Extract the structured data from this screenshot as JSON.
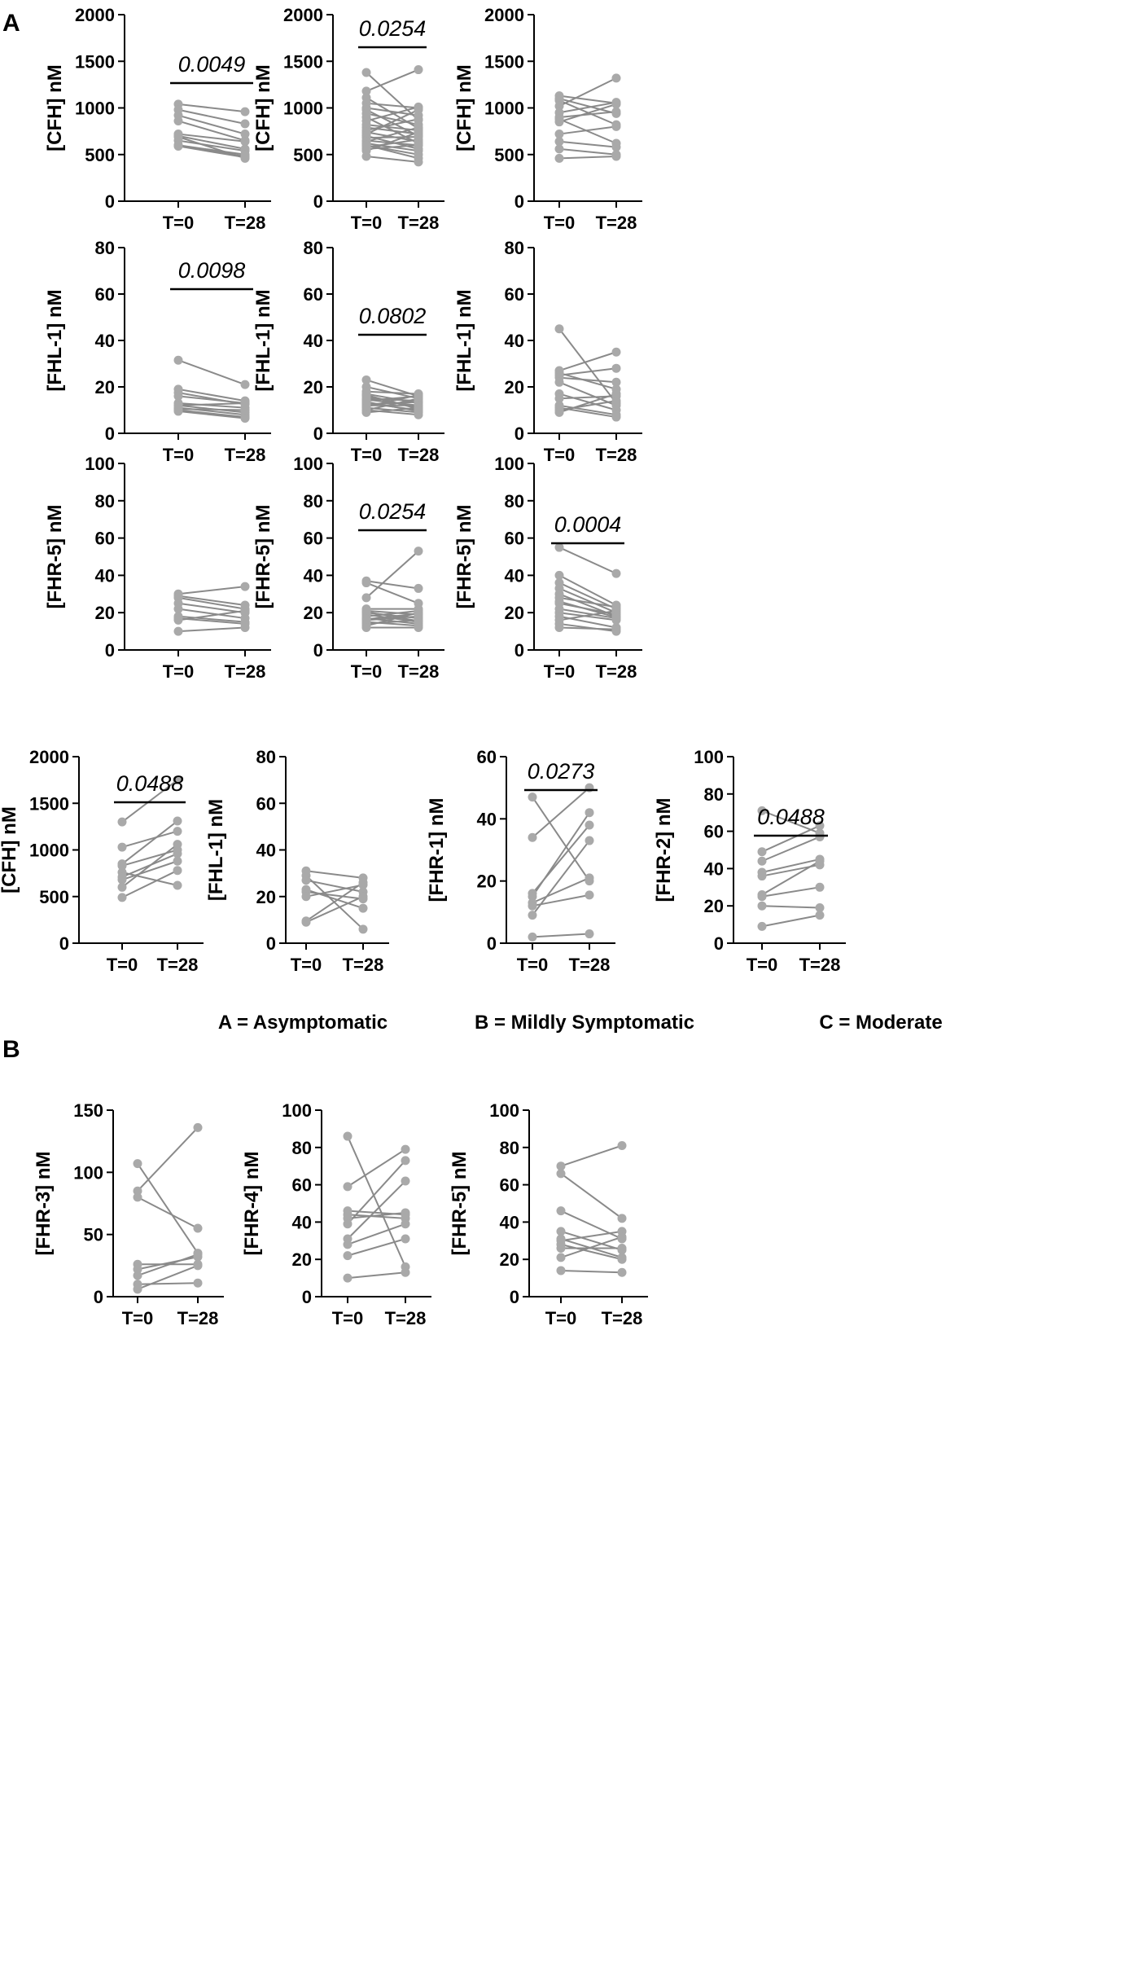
{
  "panels": {
    "A": "A",
    "B": "B"
  },
  "group_labels": [
    "A = Asymptomatic",
    "B = Mildly Symptomatic",
    "C = Moderate"
  ],
  "colors": {
    "line": "#8a8a8a",
    "point": "#a9a9a9",
    "axis": "#000000"
  },
  "chart_data": [
    {
      "type": "line",
      "panel": "A",
      "categories": [
        "T=0",
        "T=28"
      ],
      "ylabel": "[CFH] nM",
      "ylim": [
        0,
        2000
      ],
      "yticks": [
        0,
        500,
        1000,
        1500,
        2000
      ],
      "pvalue": "0.0049",
      "pairs": [
        [
          1040,
          960
        ],
        [
          980,
          830
        ],
        [
          920,
          720
        ],
        [
          860,
          650
        ],
        [
          720,
          640
        ],
        [
          700,
          560
        ],
        [
          650,
          540
        ],
        [
          600,
          500
        ],
        [
          590,
          470
        ],
        [
          600,
          480
        ],
        [
          690,
          460
        ]
      ]
    },
    {
      "type": "line",
      "panel": "A",
      "categories": [
        "T=0",
        "T=28"
      ],
      "ylabel": "[CFH] nM",
      "ylim": [
        0,
        2000
      ],
      "yticks": [
        0,
        500,
        1000,
        1500,
        2000
      ],
      "pvalue": "0.0254",
      "pairs": [
        [
          1380,
          870
        ],
        [
          1180,
          1410
        ],
        [
          1110,
          780
        ],
        [
          1050,
          1000
        ],
        [
          1000,
          920
        ],
        [
          980,
          700
        ],
        [
          940,
          820
        ],
        [
          900,
          620
        ],
        [
          860,
          1010
        ],
        [
          820,
          760
        ],
        [
          790,
          720
        ],
        [
          760,
          880
        ],
        [
          740,
          640
        ],
        [
          720,
          980
        ],
        [
          700,
          560
        ],
        [
          680,
          690
        ],
        [
          650,
          600
        ],
        [
          640,
          790
        ],
        [
          620,
          540
        ],
        [
          600,
          500
        ],
        [
          580,
          660
        ],
        [
          560,
          600
        ],
        [
          540,
          740
        ],
        [
          480,
          420
        ],
        [
          600,
          460
        ]
      ]
    },
    {
      "type": "line",
      "panel": "A",
      "categories": [
        "T=0",
        "T=28"
      ],
      "ylabel": "[CFH] nM",
      "ylim": [
        0,
        2000
      ],
      "yticks": [
        0,
        500,
        1000,
        1500,
        2000
      ],
      "pvalue": "",
      "pairs": [
        [
          1130,
          1050
        ],
        [
          1100,
          940
        ],
        [
          1080,
          820
        ],
        [
          1020,
          1320
        ],
        [
          950,
          1060
        ],
        [
          900,
          960
        ],
        [
          880,
          620
        ],
        [
          850,
          1040
        ],
        [
          720,
          800
        ],
        [
          640,
          580
        ],
        [
          560,
          500
        ],
        [
          460,
          480
        ]
      ]
    },
    {
      "type": "line",
      "panel": "A",
      "categories": [
        "T=0",
        "T=28"
      ],
      "ylabel": "[FHL-1] nM",
      "ylim": [
        0,
        80
      ],
      "yticks": [
        0,
        20,
        40,
        60,
        80
      ],
      "pvalue": "0.0098",
      "pairs": [
        [
          31.5,
          21
        ],
        [
          19,
          14
        ],
        [
          17.5,
          12.5
        ],
        [
          16,
          13
        ],
        [
          13,
          11
        ],
        [
          12,
          9
        ],
        [
          11,
          8
        ],
        [
          10,
          7
        ],
        [
          9.5,
          6.5
        ],
        [
          10.5,
          10
        ],
        [
          12,
          13
        ]
      ]
    },
    {
      "type": "line",
      "panel": "A",
      "categories": [
        "T=0",
        "T=28"
      ],
      "ylabel": "[FHL-1] nM",
      "ylim": [
        0,
        80
      ],
      "yticks": [
        0,
        20,
        40,
        60,
        80
      ],
      "pvalue": "0.0802",
      "pairs": [
        [
          23,
          16
        ],
        [
          20,
          15
        ],
        [
          18,
          17
        ],
        [
          17,
          13
        ],
        [
          16,
          11
        ],
        [
          15,
          14
        ],
        [
          14,
          16
        ],
        [
          13,
          10
        ],
        [
          12,
          12
        ],
        [
          11,
          9
        ],
        [
          10,
          15
        ],
        [
          10,
          8
        ],
        [
          9,
          11
        ],
        [
          12.5,
          13.5
        ],
        [
          14.5,
          12
        ],
        [
          11.5,
          16.5
        ],
        [
          16.5,
          10.5
        ],
        [
          13.5,
          9.5
        ]
      ]
    },
    {
      "type": "line",
      "panel": "A",
      "categories": [
        "T=0",
        "T=28"
      ],
      "ylabel": "[FHL-1] nM",
      "ylim": [
        0,
        80
      ],
      "yticks": [
        0,
        20,
        40,
        60,
        80
      ],
      "pvalue": "",
      "pairs": [
        [
          45,
          13
        ],
        [
          27,
          35
        ],
        [
          26,
          19
        ],
        [
          25,
          28
        ],
        [
          24,
          22
        ],
        [
          22,
          12
        ],
        [
          17,
          10
        ],
        [
          15,
          16
        ],
        [
          12,
          8
        ],
        [
          11,
          7
        ],
        [
          10,
          14
        ],
        [
          9,
          17
        ]
      ]
    },
    {
      "type": "line",
      "panel": "A",
      "categories": [
        "T=0",
        "T=28"
      ],
      "ylabel": "[FHR-5] nM",
      "ylim": [
        0,
        100
      ],
      "yticks": [
        0,
        20,
        40,
        60,
        80,
        100
      ],
      "pvalue": "",
      "pairs": [
        [
          30,
          34
        ],
        [
          29,
          24
        ],
        [
          28,
          22
        ],
        [
          25,
          20
        ],
        [
          22,
          17
        ],
        [
          18,
          15
        ],
        [
          17,
          14
        ],
        [
          16,
          21
        ],
        [
          10,
          12
        ]
      ]
    },
    {
      "type": "line",
      "panel": "A",
      "categories": [
        "T=0",
        "T=28"
      ],
      "ylabel": "[FHR-5] nM",
      "ylim": [
        0,
        100
      ],
      "yticks": [
        0,
        20,
        40,
        60,
        80,
        100
      ],
      "pvalue": "0.0254",
      "pairs": [
        [
          37,
          33
        ],
        [
          36,
          25
        ],
        [
          28,
          53
        ],
        [
          22,
          22
        ],
        [
          21,
          19
        ],
        [
          20,
          17
        ],
        [
          19,
          15
        ],
        [
          18,
          21
        ],
        [
          17,
          14
        ],
        [
          16,
          18
        ],
        [
          15,
          13
        ],
        [
          14,
          16
        ],
        [
          13,
          20
        ],
        [
          12,
          12
        ],
        [
          20.5,
          15.5
        ],
        [
          16.5,
          19.5
        ]
      ]
    },
    {
      "type": "line",
      "panel": "A",
      "categories": [
        "T=0",
        "T=28"
      ],
      "ylabel": "[FHR-5] nM",
      "ylim": [
        0,
        100
      ],
      "yticks": [
        0,
        20,
        40,
        60,
        80,
        100
      ],
      "pvalue": "0.0004",
      "pairs": [
        [
          55,
          41
        ],
        [
          40,
          24
        ],
        [
          36,
          22
        ],
        [
          33,
          20
        ],
        [
          30,
          18
        ],
        [
          28,
          23
        ],
        [
          25,
          19
        ],
        [
          22,
          17
        ],
        [
          20,
          16
        ],
        [
          18,
          12
        ],
        [
          16,
          21
        ],
        [
          14,
          10
        ],
        [
          12,
          11
        ],
        [
          26,
          17.5
        ]
      ]
    },
    {
      "type": "line",
      "panel": "B",
      "categories": [
        "T=0",
        "T=28"
      ],
      "ylabel": "[CFH] nM",
      "ylim": [
        0,
        2000
      ],
      "yticks": [
        0,
        500,
        1000,
        1500,
        2000
      ],
      "pvalue": "0.0488",
      "pairs": [
        [
          1300,
          1750
        ],
        [
          1030,
          1200
        ],
        [
          850,
          1310
        ],
        [
          830,
          1000
        ],
        [
          760,
          620
        ],
        [
          710,
          960
        ],
        [
          680,
          880
        ],
        [
          600,
          1060
        ],
        [
          490,
          780
        ]
      ]
    },
    {
      "type": "line",
      "panel": "B",
      "categories": [
        "T=0",
        "T=28"
      ],
      "ylabel": "[FHL-1] nM",
      "ylim": [
        0,
        80
      ],
      "yticks": [
        0,
        20,
        40,
        60,
        80
      ],
      "pvalue": "",
      "pairs": [
        [
          31,
          28
        ],
        [
          29,
          6
        ],
        [
          27,
          22
        ],
        [
          23,
          15
        ],
        [
          22,
          19
        ],
        [
          20,
          25
        ],
        [
          9.5,
          26
        ],
        [
          9,
          20
        ]
      ]
    },
    {
      "type": "line",
      "panel": "B",
      "categories": [
        "T=0",
        "T=28"
      ],
      "ylabel": "[FHR-1] nM",
      "ylim": [
        0,
        60
      ],
      "yticks": [
        0,
        20,
        40,
        60
      ],
      "pvalue": "0.0273",
      "pairs": [
        [
          47,
          20
        ],
        [
          34,
          50
        ],
        [
          16,
          38
        ],
        [
          15,
          42
        ],
        [
          13,
          21
        ],
        [
          12,
          15.5
        ],
        [
          9,
          33
        ],
        [
          2,
          3
        ]
      ]
    },
    {
      "type": "line",
      "panel": "B",
      "categories": [
        "T=0",
        "T=28"
      ],
      "ylabel": "[FHR-2] nM",
      "ylim": [
        0,
        100
      ],
      "yticks": [
        0,
        20,
        40,
        60,
        80,
        100
      ],
      "pvalue": "0.0488",
      "pairs": [
        [
          71,
          59
        ],
        [
          49,
          63
        ],
        [
          44,
          57
        ],
        [
          38,
          45
        ],
        [
          36,
          42
        ],
        [
          26,
          44
        ],
        [
          25,
          30
        ],
        [
          20,
          19
        ],
        [
          9,
          15
        ]
      ]
    },
    {
      "type": "line",
      "panel": "B",
      "categories": [
        "T=0",
        "T=28"
      ],
      "ylabel": "[FHR-3] nM",
      "ylim": [
        0,
        150
      ],
      "yticks": [
        0,
        50,
        100,
        150
      ],
      "pvalue": "",
      "pairs": [
        [
          107,
          35
        ],
        [
          85,
          136
        ],
        [
          80,
          55
        ],
        [
          26,
          26
        ],
        [
          22,
          32
        ],
        [
          17,
          34
        ],
        [
          10,
          11
        ],
        [
          6,
          25
        ]
      ]
    },
    {
      "type": "line",
      "panel": "B",
      "categories": [
        "T=0",
        "T=28"
      ],
      "ylabel": "[FHR-4] nM",
      "ylim": [
        0,
        100
      ],
      "yticks": [
        0,
        20,
        40,
        60,
        80,
        100
      ],
      "pvalue": "",
      "pairs": [
        [
          86,
          16
        ],
        [
          59,
          79
        ],
        [
          46,
          44
        ],
        [
          44,
          42
        ],
        [
          42,
          45
        ],
        [
          39,
          73
        ],
        [
          31,
          62
        ],
        [
          28,
          39
        ],
        [
          22,
          31
        ],
        [
          10,
          13
        ]
      ]
    },
    {
      "type": "line",
      "panel": "B",
      "categories": [
        "T=0",
        "T=28"
      ],
      "ylabel": "[FHR-5] nM",
      "ylim": [
        0,
        100
      ],
      "yticks": [
        0,
        20,
        40,
        60,
        80,
        100
      ],
      "pvalue": "",
      "pairs": [
        [
          70,
          81
        ],
        [
          66,
          42
        ],
        [
          46,
          31
        ],
        [
          35,
          25
        ],
        [
          31,
          21
        ],
        [
          30,
          35
        ],
        [
          28,
          20
        ],
        [
          26,
          26
        ],
        [
          21,
          32
        ],
        [
          14,
          13
        ]
      ]
    }
  ]
}
